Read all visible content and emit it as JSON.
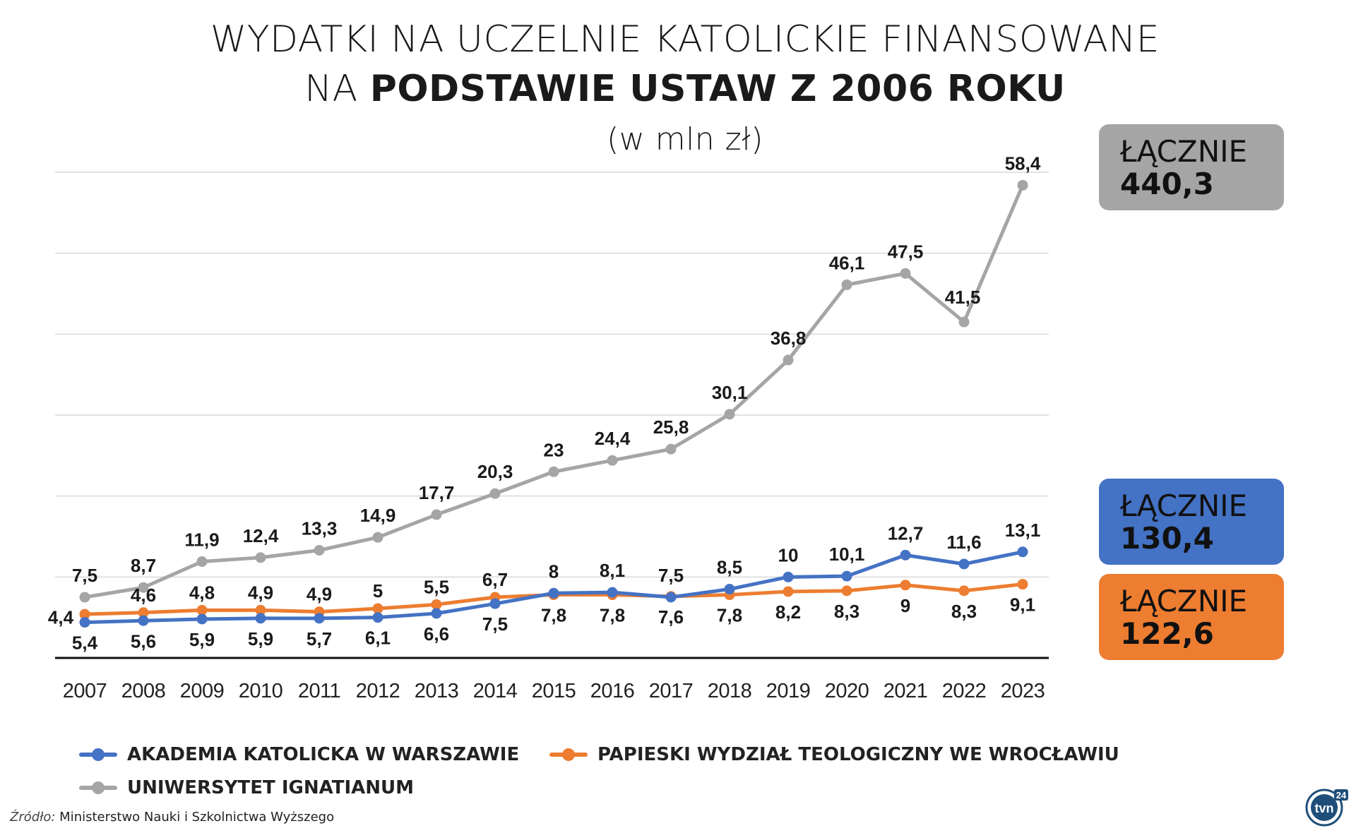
{
  "title": {
    "line1": "WYDATKI NA UCZELNIE KATOLICKIE FINANSOWANE",
    "line2_prefix": "NA ",
    "line2_bold": "PODSTAWIE USTAW Z 2006 ROKU",
    "subtitle": "(w mln zł)"
  },
  "totals": [
    {
      "label": "ŁĄCZNIE",
      "value": "440,3",
      "color": "#a5a5a5"
    },
    {
      "label": "ŁĄCZNIE",
      "value": "130,4",
      "color": "#4472c4"
    },
    {
      "label": "ŁĄCZNIE",
      "value": "122,6",
      "color": "#ed7d31"
    }
  ],
  "legend": [
    {
      "label": "AKADEMIA KATOLICKA W WARSZAWIE",
      "color": "#4472c4"
    },
    {
      "label": "PAPIESKI WYDZIAŁ TEOLOGICZNY WE WROCŁAWIU",
      "color": "#ed7d31"
    },
    {
      "label": "UNIWERSYTET IGNATIANUM",
      "color": "#a5a5a5"
    }
  ],
  "source": {
    "label": "Źródło:",
    "text": "Ministerstwo Nauki i Szkolnictwa Wyższego"
  },
  "logo": {
    "text": "tvn",
    "badge": "24"
  },
  "chart_data": {
    "type": "line",
    "title": "WYDATKI NA UCZELNIE KATOLICKIE FINANSOWANE NA PODSTAWIE USTAW Z 2006 ROKU",
    "subtitle": "(w mln zł)",
    "categories": [
      "2007",
      "2008",
      "2009",
      "2010",
      "2011",
      "2012",
      "2013",
      "2014",
      "2015",
      "2016",
      "2017",
      "2018",
      "2019",
      "2020",
      "2021",
      "2022",
      "2023"
    ],
    "series": [
      {
        "name": "AKADEMIA KATOLICKA W WARSZAWIE",
        "color": "#4472c4",
        "values": [
          4.4,
          4.6,
          4.8,
          4.9,
          4.9,
          5,
          5.5,
          6.7,
          8,
          8.1,
          7.5,
          8.5,
          10,
          10.1,
          12.7,
          11.6,
          13.1
        ],
        "labels": [
          "4,4",
          "4,6",
          "4,8",
          "4,9",
          "4,9",
          "5",
          "5,5",
          "6,7",
          "8",
          "8,1",
          "7,5",
          "8,5",
          "10",
          "10,1",
          "12,7",
          "11,6",
          "13,1"
        ]
      },
      {
        "name": "PAPIESKI WYDZIAŁ TEOLOGICZNY WE WROCŁAWIU",
        "color": "#ed7d31",
        "values": [
          5.4,
          5.6,
          5.9,
          5.9,
          5.7,
          6.1,
          6.6,
          7.5,
          7.8,
          7.8,
          7.6,
          7.8,
          8.2,
          8.3,
          9,
          8.3,
          9.1
        ],
        "labels": [
          "5,4",
          "5,6",
          "5,9",
          "5,9",
          "5,7",
          "6,1",
          "6,6",
          "7,5",
          "7,8",
          "7,8",
          "7,6",
          "7,8",
          "8,2",
          "8,3",
          "9",
          "8,3",
          "9,1"
        ]
      },
      {
        "name": "UNIWERSYTET IGNATIANUM",
        "color": "#a5a5a5",
        "values": [
          7.5,
          8.7,
          11.9,
          12.4,
          13.3,
          14.9,
          17.7,
          20.3,
          23,
          24.4,
          25.8,
          30.1,
          36.8,
          46.1,
          47.5,
          41.5,
          58.4
        ],
        "labels": [
          "7,5",
          "8,7",
          "11,9",
          "12,4",
          "13,3",
          "14,9",
          "17,7",
          "20,3",
          "23",
          "24,4",
          "25,8",
          "30,1",
          "36,8",
          "46,1",
          "47,5",
          "41,5",
          "58,4"
        ]
      }
    ],
    "ylim": [
      0,
      60
    ],
    "grid": true,
    "legend_position": "bottom"
  }
}
